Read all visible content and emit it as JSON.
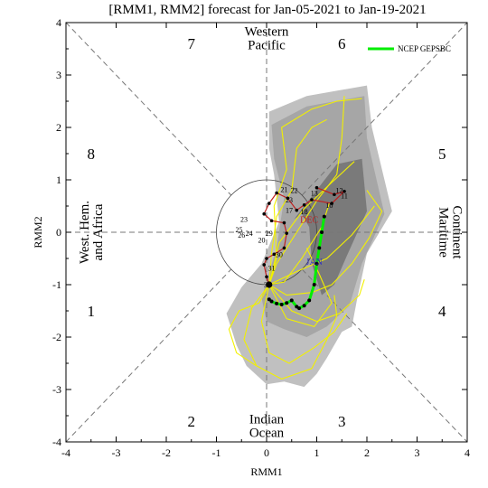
{
  "chart_data": {
    "type": "line",
    "title": "[RMM1, RMM2] forecast for Jan-05-2021 to Jan-19-2021",
    "xlabel": "RMM1",
    "ylabel": "RMM2",
    "xlim": [
      -4,
      4
    ],
    "ylim": [
      -4,
      4
    ],
    "xticks": [
      "-4",
      "-3",
      "-2",
      "-1",
      "0",
      "1",
      "2",
      "3",
      "4"
    ],
    "yticks": [
      "-4",
      "-3",
      "-2",
      "-1",
      "0",
      "1",
      "2",
      "3",
      "4"
    ],
    "grid": false,
    "legend": {
      "position": "top-right",
      "entries": [
        "NCEP GEPSBC"
      ]
    },
    "phases": [
      {
        "label": "1",
        "x": -3.5,
        "y": -1.5
      },
      {
        "label": "2",
        "x": -1.5,
        "y": -3.6
      },
      {
        "label": "3",
        "x": 1.5,
        "y": -3.6
      },
      {
        "label": "4",
        "x": 3.5,
        "y": -1.5
      },
      {
        "label": "5",
        "x": 3.5,
        "y": 1.5
      },
      {
        "label": "6",
        "x": 1.5,
        "y": 3.6
      },
      {
        "label": "7",
        "x": -1.5,
        "y": 3.6
      },
      {
        "label": "8",
        "x": -3.5,
        "y": 1.5
      }
    ],
    "regions": {
      "top": [
        "Western",
        "Pacific"
      ],
      "bottom": [
        "Indian",
        "Ocean"
      ],
      "left": [
        "West. Hem.",
        "and Africa"
      ],
      "right": [
        "Maritime",
        "Continent"
      ]
    },
    "colors": {
      "outer_spread": "#c0c0c0",
      "mid_spread": "#a6a6a6",
      "inner_spread": "#7a7a7a",
      "members": "#f2f000",
      "observed": "#c02020",
      "forecast_mean": "#00ee00",
      "month_label_dec": "#c02020",
      "month_label_jan": "#3030c0"
    },
    "spread_outer": [
      [
        0.05,
        2.3
      ],
      [
        0.8,
        2.6
      ],
      [
        2.0,
        2.8
      ],
      [
        2.1,
        2.0
      ],
      [
        2.5,
        0.4
      ],
      [
        2.0,
        -0.4
      ],
      [
        1.8,
        -1.3
      ],
      [
        1.7,
        -1.8
      ],
      [
        1.5,
        -1.9
      ],
      [
        1.2,
        -2.4
      ],
      [
        1.0,
        -2.7
      ],
      [
        0.75,
        -2.95
      ],
      [
        0.35,
        -2.85
      ],
      [
        0.0,
        -2.9
      ],
      [
        -0.4,
        -2.55
      ],
      [
        -0.6,
        -2.15
      ],
      [
        -0.8,
        -1.55
      ],
      [
        -0.5,
        -1.05
      ],
      [
        -0.1,
        -0.6
      ],
      [
        0.25,
        0.2
      ],
      [
        0.15,
        1.1
      ],
      [
        0.05,
        1.6
      ]
    ],
    "spread_mid": [
      [
        0.1,
        2.05
      ],
      [
        0.8,
        2.4
      ],
      [
        1.95,
        2.6
      ],
      [
        2.0,
        1.8
      ],
      [
        2.35,
        0.35
      ],
      [
        1.9,
        -0.6
      ],
      [
        1.65,
        -1.4
      ],
      [
        1.2,
        -1.8
      ],
      [
        0.8,
        -2.0
      ],
      [
        0.35,
        -1.85
      ],
      [
        0.0,
        -1.7
      ],
      [
        -0.1,
        -1.25
      ],
      [
        0.2,
        -0.3
      ],
      [
        0.35,
        0.65
      ],
      [
        0.15,
        1.4
      ]
    ],
    "spread_inner": [
      [
        0.55,
        0.25
      ],
      [
        1.4,
        1.3
      ],
      [
        1.9,
        1.4
      ],
      [
        2.0,
        0.4
      ],
      [
        1.6,
        -0.45
      ],
      [
        1.35,
        -1.0
      ],
      [
        1.1,
        -1.2
      ],
      [
        0.9,
        -0.6
      ],
      [
        0.85,
        0.1
      ],
      [
        0.7,
        0.35
      ]
    ],
    "observed": {
      "x": [
        1.0,
        1.35,
        1.55,
        1.3,
        0.9,
        0.75,
        0.6,
        0.42,
        0.2,
        0.05,
        -0.05,
        0.1,
        0.35,
        0.4,
        0.35,
        0.15,
        0.0,
        -0.05,
        0.0,
        0.05
      ],
      "y": [
        0.85,
        0.72,
        0.78,
        0.55,
        0.62,
        0.52,
        0.42,
        0.65,
        0.75,
        0.55,
        0.35,
        0.22,
        0.18,
        -0.02,
        -0.3,
        -0.42,
        -0.5,
        -0.62,
        -0.85,
        -1.0
      ],
      "day_labels": [
        {
          "text": "21",
          "x": 0.35,
          "y": 0.82
        },
        {
          "text": "22",
          "x": 0.55,
          "y": 0.8
        },
        {
          "text": "13",
          "x": 0.95,
          "y": 0.75
        },
        {
          "text": "12",
          "x": 1.45,
          "y": 0.8
        },
        {
          "text": "11",
          "x": 1.55,
          "y": 0.7
        },
        {
          "text": "10",
          "x": 1.25,
          "y": 0.52
        },
        {
          "text": "23",
          "x": 0.45,
          "y": 0.62
        },
        {
          "text": "17",
          "x": 0.45,
          "y": 0.42
        },
        {
          "text": "18",
          "x": 0.75,
          "y": 0.4
        },
        {
          "text": "23",
          "x": -0.45,
          "y": 0.25
        },
        {
          "text": "25",
          "x": -0.55,
          "y": 0.05
        },
        {
          "text": "26",
          "x": -0.5,
          "y": -0.05
        },
        {
          "text": "24",
          "x": -0.35,
          "y": -0.02
        },
        {
          "text": "29",
          "x": 0.05,
          "y": -0.02
        },
        {
          "text": "20",
          "x": -0.1,
          "y": -0.15
        },
        {
          "text": "30",
          "x": 0.25,
          "y": -0.42
        },
        {
          "text": "31",
          "x": 0.1,
          "y": -0.68
        },
        {
          "text": "3",
          "x": -0.02,
          "y": -1.0
        }
      ],
      "month_labels": [
        {
          "text": "DEC",
          "x": 0.85,
          "y": 0.25,
          "color": "month_label_dec"
        },
        {
          "text": "JAN",
          "x": 0.95,
          "y": -0.55,
          "color": "month_label_jan"
        }
      ]
    },
    "forecast_mean": {
      "name": "NCEP GEPSBC",
      "x": [
        0.05,
        0.1,
        0.2,
        0.3,
        0.4,
        0.5,
        0.6,
        0.65,
        0.75,
        0.85,
        0.95,
        1.0,
        1.05,
        1.1,
        1.15
      ],
      "y": [
        -1.28,
        -1.32,
        -1.36,
        -1.38,
        -1.35,
        -1.3,
        -1.42,
        -1.45,
        -1.4,
        -1.3,
        -1.0,
        -0.6,
        -0.3,
        0.0,
        0.3
      ]
    },
    "members": [
      {
        "x": [
          0.05,
          -0.3,
          -0.45,
          -0.2,
          0.3,
          0.9,
          1.2,
          1.4,
          1.35
        ],
        "y": [
          -1.0,
          -1.45,
          -2.05,
          -2.55,
          -2.8,
          -2.6,
          -2.05,
          -1.6,
          -1.2
        ]
      },
      {
        "x": [
          0.05,
          0.4,
          0.9,
          1.3,
          1.7,
          2.05,
          2.3,
          2.0
        ],
        "y": [
          -1.0,
          -1.2,
          -1.15,
          -1.0,
          -0.6,
          -0.1,
          0.4,
          0.8
        ]
      },
      {
        "x": [
          0.05,
          0.2,
          0.6,
          1.0,
          1.4,
          1.5,
          1.55
        ],
        "y": [
          -1.0,
          -0.6,
          0.0,
          0.6,
          1.1,
          1.8,
          2.6
        ]
      },
      {
        "x": [
          0.05,
          0.1,
          0.2,
          0.5,
          0.6,
          0.9,
          1.2
        ],
        "y": [
          -1.0,
          -0.4,
          0.3,
          0.8,
          1.6,
          2.0,
          2.15
        ]
      },
      {
        "x": [
          0.05,
          -0.15,
          -0.55,
          -0.75,
          -0.6,
          -0.2
        ],
        "y": [
          -1.0,
          -1.35,
          -1.5,
          -1.85,
          -2.3,
          -2.55
        ]
      },
      {
        "x": [
          0.05,
          0.5,
          1.0,
          1.45,
          1.85,
          1.95
        ],
        "y": [
          -1.0,
          -1.5,
          -1.7,
          -1.55,
          -1.2,
          -0.9
        ]
      },
      {
        "x": [
          0.05,
          0.35,
          0.7,
          1.1,
          1.25
        ],
        "y": [
          -1.0,
          -0.95,
          -0.5,
          0.1,
          0.55
        ]
      },
      {
        "x": [
          0.05,
          0.2,
          0.15,
          0.4,
          0.3,
          0.9,
          1.4,
          1.9
        ],
        "y": [
          -1.0,
          -0.5,
          0.5,
          1.2,
          2.0,
          2.35,
          2.5,
          2.55
        ]
      },
      {
        "x": [
          0.05,
          -0.1,
          0.05,
          0.45,
          0.95,
          1.35,
          1.6
        ],
        "y": [
          -1.0,
          -1.7,
          -2.3,
          -2.5,
          -2.2,
          -1.9,
          -1.55
        ]
      },
      {
        "x": [
          0.05,
          0.6,
          1.2,
          1.7,
          2.15
        ],
        "y": [
          -1.0,
          -0.75,
          -0.5,
          -0.05,
          0.5
        ]
      },
      {
        "x": [
          0.05,
          0.4,
          0.95,
          1.3,
          1.05,
          0.8
        ],
        "y": [
          -1.0,
          -1.65,
          -1.8,
          -1.35,
          -0.8,
          -0.3
        ]
      },
      {
        "x": [
          0.05,
          0.25,
          0.75,
          1.3,
          1.75
        ],
        "y": [
          -1.0,
          -0.2,
          0.45,
          0.95,
          1.35
        ]
      }
    ]
  }
}
